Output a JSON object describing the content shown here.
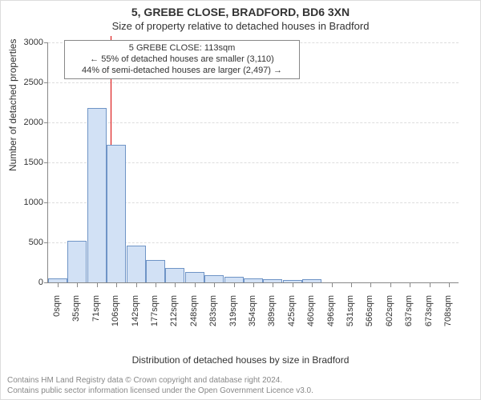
{
  "header": {
    "title": "5, GREBE CLOSE, BRADFORD, BD6 3XN",
    "subtitle": "Size of property relative to detached houses in Bradford"
  },
  "chart": {
    "type": "histogram",
    "ylabel": "Number of detached properties",
    "xlabel": "Distribution of detached houses by size in Bradford",
    "ylim_max": 3000,
    "ytick_step": 500,
    "bar_fill": "#d2e1f5",
    "bar_stroke": "#6f94c6",
    "grid_color": "#dddddd",
    "axis_color": "#888888",
    "background": "#ffffff",
    "ref_value_sqm": 113,
    "ref_line_color": "#d80000",
    "annotation": {
      "line1": "5 GREBE CLOSE: 113sqm",
      "line2": "← 55% of detached houses are smaller (3,110)",
      "line3": "44% of semi-detached houses are larger (2,497) →"
    },
    "bins": [
      {
        "label": "0sqm",
        "start": 0,
        "value": 50
      },
      {
        "label": "35sqm",
        "start": 35,
        "value": 520
      },
      {
        "label": "71sqm",
        "start": 71,
        "value": 2180
      },
      {
        "label": "106sqm",
        "start": 106,
        "value": 1720
      },
      {
        "label": "142sqm",
        "start": 142,
        "value": 460
      },
      {
        "label": "177sqm",
        "start": 177,
        "value": 280
      },
      {
        "label": "212sqm",
        "start": 212,
        "value": 180
      },
      {
        "label": "248sqm",
        "start": 248,
        "value": 130
      },
      {
        "label": "283sqm",
        "start": 283,
        "value": 90
      },
      {
        "label": "319sqm",
        "start": 319,
        "value": 70
      },
      {
        "label": "354sqm",
        "start": 354,
        "value": 50
      },
      {
        "label": "389sqm",
        "start": 389,
        "value": 40
      },
      {
        "label": "425sqm",
        "start": 425,
        "value": 30
      },
      {
        "label": "460sqm",
        "start": 460,
        "value": 40
      },
      {
        "label": "496sqm",
        "start": 496,
        "value": 0
      },
      {
        "label": "531sqm",
        "start": 531,
        "value": 0
      },
      {
        "label": "566sqm",
        "start": 566,
        "value": 0
      },
      {
        "label": "602sqm",
        "start": 602,
        "value": 0
      },
      {
        "label": "637sqm",
        "start": 637,
        "value": 0
      },
      {
        "label": "673sqm",
        "start": 673,
        "value": 0
      },
      {
        "label": "708sqm",
        "start": 708,
        "value": 0
      }
    ],
    "x_max_sqm": 743
  },
  "footer": {
    "line1": "Contains HM Land Registry data © Crown copyright and database right 2024.",
    "line2": "Contains public sector information licensed under the Open Government Licence v3.0."
  }
}
